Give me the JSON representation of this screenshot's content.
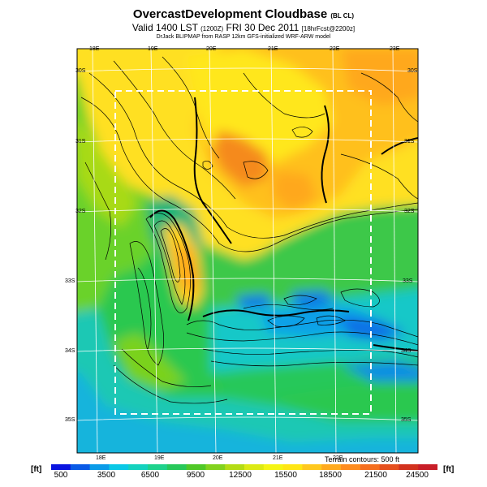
{
  "header": {
    "title": "OvercastDevelopment Cloudbase",
    "title_tag": "(BL CL)",
    "valid": "Valid 1400 LST",
    "valid_code": "(1200Z)",
    "date": "FRI 30 Dec 2011",
    "forecast": "[18hrFcst@2200z]",
    "credit": "DrJack BLIPMAP from RASP 12km GFS-initialized WRF-ARW model"
  },
  "map": {
    "lon_labels_top": [
      "18E",
      "19E",
      "20E",
      "21E",
      "22E",
      "23E"
    ],
    "lon_labels_bottom": [
      "18E",
      "19E",
      "20E",
      "21E",
      "22E"
    ],
    "lat_labels_left": [
      "30S",
      "31S",
      "32S",
      "33S",
      "34S",
      "35S"
    ],
    "lat_labels_right": [
      "30S",
      "31S",
      "32S",
      "33S",
      "34S",
      "35S"
    ],
    "contour_note": "Terrain contours: 500 ft"
  },
  "colorbar": {
    "unit": "[ft]",
    "tick_labels": [
      "500",
      "3500",
      "6500",
      "9500",
      "12500",
      "15500",
      "18500",
      "21500",
      "24500"
    ],
    "colors": [
      "#0a14e0",
      "#0a5ae6",
      "#0a9be8",
      "#0ac8e6",
      "#14d2be",
      "#1ed28c",
      "#28c85a",
      "#50c828",
      "#82d21e",
      "#b4dc14",
      "#dcea14",
      "#f5f514",
      "#ffe614",
      "#ffc81e",
      "#ffaa1e",
      "#ff8c1e",
      "#f56e1e",
      "#e6501e",
      "#d2321e",
      "#c81e28"
    ]
  }
}
